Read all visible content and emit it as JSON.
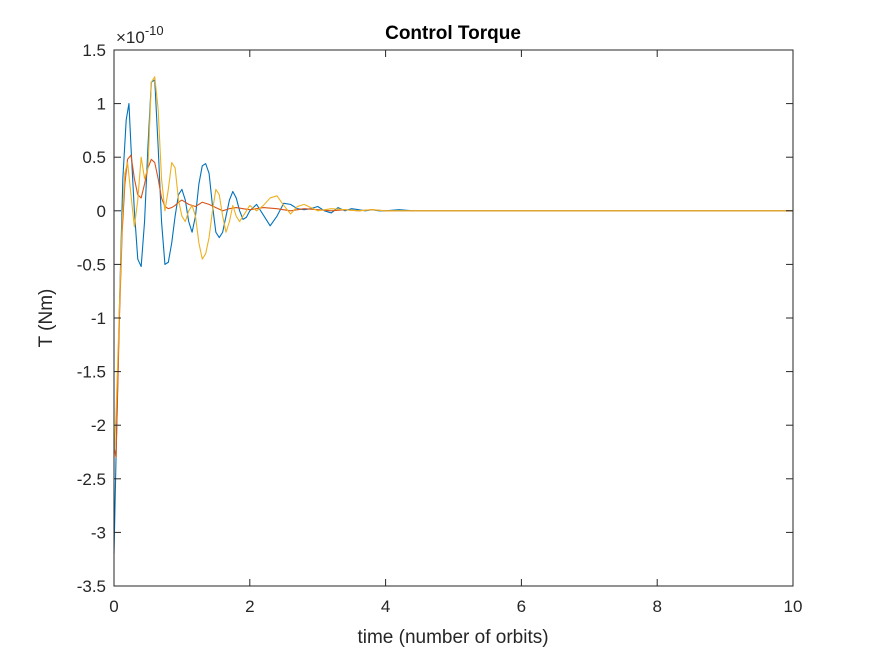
{
  "chart_data": {
    "type": "line",
    "title": "Control Torque",
    "xlabel": "time (number of orbits)",
    "ylabel": "T (Nm)",
    "y_exponent_label": "×10",
    "y_exponent_power": "-10",
    "xlim": [
      0,
      10
    ],
    "ylim": [
      -3.5,
      1.5
    ],
    "x_ticks": [
      0,
      2,
      4,
      6,
      8,
      10
    ],
    "x_tick_labels": [
      "0",
      "2",
      "4",
      "6",
      "8",
      "10"
    ],
    "y_ticks": [
      -3.5,
      -3,
      -2.5,
      -2,
      -1.5,
      -1,
      -0.5,
      0,
      0.5,
      1,
      1.5
    ],
    "y_tick_labels": [
      "-3.5",
      "-3",
      "-2.5",
      "-2",
      "-1.5",
      "-1",
      "-0.5",
      "0",
      "0.5",
      "1",
      "1.5"
    ],
    "grid": false,
    "series": [
      {
        "color": "#0072BD",
        "x": [
          0,
          0.03,
          0.08,
          0.13,
          0.18,
          0.22,
          0.25,
          0.3,
          0.35,
          0.4,
          0.45,
          0.5,
          0.55,
          0.6,
          0.65,
          0.7,
          0.75,
          0.8,
          0.85,
          0.9,
          0.95,
          1.0,
          1.05,
          1.1,
          1.15,
          1.2,
          1.25,
          1.3,
          1.35,
          1.4,
          1.45,
          1.5,
          1.55,
          1.6,
          1.65,
          1.7,
          1.75,
          1.8,
          1.85,
          1.9,
          1.95,
          2.0,
          2.1,
          2.2,
          2.3,
          2.4,
          2.5,
          2.6,
          2.7,
          2.8,
          2.9,
          3.0,
          3.1,
          3.2,
          3.3,
          3.4,
          3.5,
          3.6,
          3.7,
          3.8,
          3.9,
          4.0,
          4.2,
          4.4,
          4.6,
          5.0,
          6.0,
          7.0,
          8.0,
          9.0,
          10.0
        ],
        "y": [
          -3.2,
          -2.3,
          -0.9,
          0.3,
          0.85,
          1.0,
          0.6,
          0.0,
          -0.45,
          -0.52,
          -0.1,
          0.6,
          1.2,
          1.22,
          0.6,
          -0.1,
          -0.5,
          -0.48,
          -0.3,
          -0.05,
          0.15,
          0.2,
          0.1,
          -0.1,
          -0.2,
          -0.05,
          0.25,
          0.42,
          0.44,
          0.35,
          0.05,
          -0.2,
          -0.25,
          -0.2,
          -0.05,
          0.1,
          0.18,
          0.12,
          0.0,
          -0.08,
          -0.06,
          0.0,
          0.06,
          -0.04,
          -0.14,
          -0.05,
          0.07,
          0.06,
          0.02,
          0.01,
          0.02,
          0.04,
          0.0,
          -0.02,
          0.03,
          0.0,
          0.02,
          0.01,
          0.0,
          0.01,
          0.0,
          0.0,
          0.01,
          0.0,
          0.0,
          0.0,
          0.0,
          0.0,
          0.0,
          0.0,
          0.0
        ]
      },
      {
        "color": "#D95319",
        "x": [
          0,
          0.03,
          0.08,
          0.12,
          0.16,
          0.2,
          0.25,
          0.3,
          0.35,
          0.4,
          0.45,
          0.5,
          0.55,
          0.6,
          0.65,
          0.7,
          0.75,
          0.8,
          0.85,
          0.9,
          0.95,
          1.0,
          1.1,
          1.2,
          1.3,
          1.4,
          1.5,
          1.6,
          1.7,
          1.8,
          1.9,
          2.0,
          2.2,
          2.4,
          2.6,
          2.8,
          3.0,
          3.2,
          3.4,
          3.6,
          3.8,
          4.0,
          4.5,
          5.0,
          6.0,
          7.0,
          8.0,
          9.0,
          10.0
        ],
        "y": [
          -2.2,
          -2.3,
          -1.0,
          -0.2,
          0.25,
          0.48,
          0.52,
          0.3,
          0.15,
          0.12,
          0.25,
          0.4,
          0.48,
          0.45,
          0.3,
          0.12,
          0.04,
          0.02,
          0.03,
          0.05,
          0.08,
          0.1,
          0.06,
          0.04,
          0.08,
          0.06,
          0.03,
          0.0,
          0.02,
          0.03,
          0.02,
          0.01,
          0.03,
          0.02,
          0.0,
          0.02,
          0.01,
          0.0,
          0.01,
          0.0,
          0.01,
          0.0,
          0.0,
          0.0,
          0.0,
          0.0,
          0.0,
          0.0,
          0.0
        ]
      },
      {
        "color": "#EDB120",
        "x": [
          0,
          0.03,
          0.08,
          0.12,
          0.16,
          0.2,
          0.25,
          0.3,
          0.35,
          0.4,
          0.45,
          0.5,
          0.55,
          0.6,
          0.65,
          0.7,
          0.75,
          0.8,
          0.85,
          0.9,
          0.95,
          1.0,
          1.05,
          1.1,
          1.15,
          1.2,
          1.25,
          1.3,
          1.35,
          1.4,
          1.45,
          1.5,
          1.55,
          1.6,
          1.65,
          1.7,
          1.75,
          1.8,
          1.85,
          1.9,
          2.0,
          2.1,
          2.2,
          2.3,
          2.4,
          2.5,
          2.6,
          2.7,
          2.8,
          2.9,
          3.0,
          3.2,
          3.4,
          3.6,
          3.8,
          4.0,
          4.5,
          5.0,
          6.0,
          7.0,
          8.0,
          9.0,
          10.0
        ],
        "y": [
          -2.3,
          -1.9,
          -0.9,
          -0.1,
          0.35,
          0.45,
          0.15,
          -0.15,
          0.1,
          0.5,
          0.3,
          0.4,
          1.2,
          1.25,
          0.95,
          0.3,
          0.0,
          0.2,
          0.45,
          0.4,
          0.1,
          -0.05,
          -0.1,
          0.0,
          0.05,
          -0.05,
          -0.3,
          -0.45,
          -0.4,
          -0.25,
          0.0,
          0.2,
          0.15,
          -0.05,
          -0.2,
          -0.1,
          0.05,
          -0.05,
          -0.1,
          -0.05,
          0.05,
          0.0,
          0.05,
          0.12,
          0.14,
          0.05,
          -0.03,
          0.04,
          0.06,
          0.03,
          0.0,
          0.02,
          0.01,
          0.0,
          0.01,
          0.0,
          0.0,
          0.0,
          0.0,
          0.0,
          0.0,
          0.0,
          0.0
        ]
      }
    ]
  }
}
